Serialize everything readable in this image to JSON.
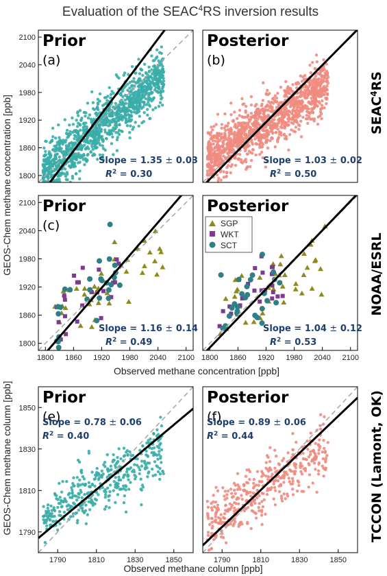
{
  "title_prefix": "Evaluation of the SEAC",
  "title_sup": "4",
  "title_suffix": "RS inversion results",
  "ylabel_top": "GEOS-Chem methane concentration [ppb]",
  "xlabel_top": "Observed methane concentration [ppb]",
  "ylabel_bottom": "GEOS-Chem methane column [ppb]",
  "xlabel_bottom": "Observed methane column [ppb]",
  "rows": [
    {
      "label": "SEAC",
      "label_sup": "4",
      "label_suffix": "RS"
    },
    {
      "label": "NOAA/ESRL",
      "label_sup": "",
      "label_suffix": ""
    },
    {
      "label": "TCCON (Lamont, OK)",
      "label_sup": "",
      "label_suffix": ""
    }
  ],
  "colors": {
    "prior": "#3aada8",
    "posterior": "#f08b80",
    "fit_line": "#000000",
    "one_to_one": "#aaaaaa",
    "stats_text": "#1f3f6e",
    "SGP": "#8f8a1c",
    "WKT": "#7d3a8e",
    "SCT": "#2e7f86"
  },
  "legend": [
    "SGP",
    "WKT",
    "SCT"
  ],
  "chart_data": [
    {
      "type": "scatter",
      "id": "a",
      "heading": "Prior",
      "panel_label": "(a)",
      "slope_text": "Slope = 1.35",
      "slope_err": "± 0.03",
      "r2_value": "= 0.30",
      "slope": 1.35,
      "r2": 0.3,
      "xlim": [
        1785,
        2115
      ],
      "ylim": [
        1785,
        2115
      ],
      "xticks": [],
      "yticks": [
        1800,
        1860,
        1920,
        1980,
        2040,
        2100
      ],
      "n_points": 1300,
      "color": "prior"
    },
    {
      "type": "scatter",
      "id": "b",
      "heading": "Posterior",
      "panel_label": "(b)",
      "slope_text": "Slope = 1.03",
      "slope_err": "± 0.02",
      "r2_value": "= 0.50",
      "slope": 1.03,
      "r2": 0.5,
      "xlim": [
        1785,
        2115
      ],
      "ylim": [
        1785,
        2115
      ],
      "xticks": [],
      "yticks": [],
      "n_points": 1300,
      "color": "posterior"
    },
    {
      "type": "scatter",
      "id": "c",
      "heading": "Prior",
      "panel_label": "(c)",
      "slope_text": "Slope = 1.16",
      "slope_err": "± 0.14",
      "r2_value": "= 0.49",
      "slope": 1.16,
      "r2": 0.49,
      "xlim": [
        1785,
        2115
      ],
      "ylim": [
        1785,
        2115
      ],
      "xticks": [
        1800,
        1860,
        1920,
        1980,
        2040,
        2100
      ],
      "yticks": [
        1800,
        1860,
        1920,
        1980,
        2040,
        2100
      ],
      "n_points": 90,
      "color": "sites"
    },
    {
      "type": "scatter",
      "id": "d",
      "heading": "Posterior",
      "panel_label": "(d)",
      "slope_text": "Slope = 1.04",
      "slope_err": "± 0.12",
      "r2_value": "= 0.53",
      "slope": 1.04,
      "r2": 0.53,
      "xlim": [
        1785,
        2115
      ],
      "ylim": [
        1785,
        2115
      ],
      "xticks": [
        1800,
        1860,
        1920,
        1980,
        2040,
        2100
      ],
      "yticks": [],
      "n_points": 90,
      "color": "sites"
    },
    {
      "type": "scatter",
      "id": "e",
      "heading": "Prior",
      "panel_label": "(e)",
      "slope_text": "Slope = 0.78",
      "slope_err": "± 0.06",
      "r2_value": "= 0.40",
      "slope": 0.78,
      "r2": 0.4,
      "xlim": [
        1780,
        1860
      ],
      "ylim": [
        1780,
        1860
      ],
      "xticks": [
        1790,
        1810,
        1830,
        1850
      ],
      "yticks": [
        1790,
        1810,
        1830,
        1850
      ],
      "n_points": 420,
      "color": "prior"
    },
    {
      "type": "scatter",
      "id": "f",
      "heading": "Posterior",
      "panel_label": "(f)",
      "slope_text": "Slope = 0.89",
      "slope_err": "± 0.06",
      "r2_value": "= 0.44",
      "slope": 0.89,
      "r2": 0.44,
      "xlim": [
        1780,
        1860
      ],
      "ylim": [
        1780,
        1860
      ],
      "xticks": [
        1790,
        1810,
        1830,
        1850
      ],
      "yticks": [],
      "n_points": 420,
      "color": "posterior"
    }
  ]
}
